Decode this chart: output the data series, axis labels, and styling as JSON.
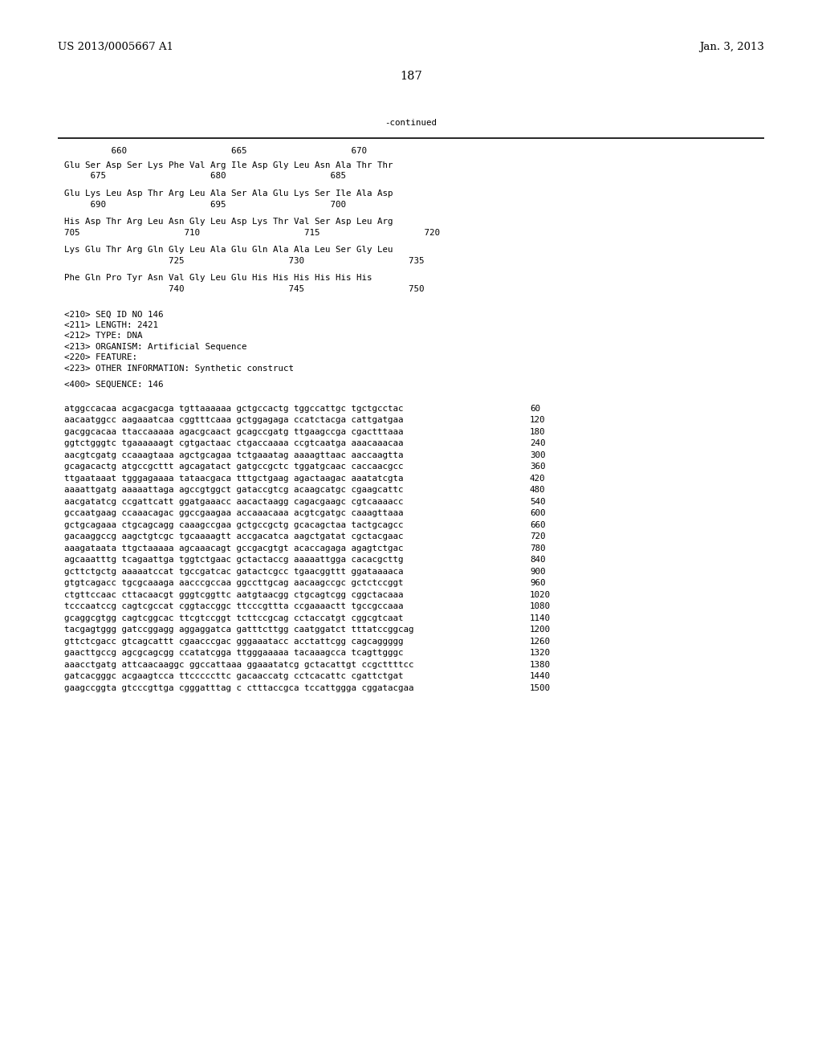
{
  "header_left": "US 2013/0005667 A1",
  "header_right": "Jan. 3, 2013",
  "page_number": "187",
  "continued_label": "-continued",
  "background_color": "#ffffff",
  "text_color": "#000000",
  "font_size_header": 9.5,
  "font_size_mono": 7.8,
  "numbering_line": "         660                    665                    670",
  "aa_sequence_lines": [
    "Glu Ser Asp Ser Lys Phe Val Arg Ile Asp Gly Leu Asn Ala Thr Thr",
    "     675                    680                    685",
    "",
    "Glu Lys Leu Asp Thr Arg Leu Ala Ser Ala Glu Lys Ser Ile Ala Asp",
    "     690                    695                    700",
    "",
    "His Asp Thr Arg Leu Asn Gly Leu Asp Lys Thr Val Ser Asp Leu Arg",
    "705                    710                    715                    720",
    "",
    "Lys Glu Thr Arg Gln Gly Leu Ala Glu Gln Ala Ala Leu Ser Gly Leu",
    "                    725                    730                    735",
    "",
    "Phe Gln Pro Tyr Asn Val Gly Leu Glu His His His His His His",
    "                    740                    745                    750"
  ],
  "metadata_lines": [
    "<210> SEQ ID NO 146",
    "<211> LENGTH: 2421",
    "<212> TYPE: DNA",
    "<213> ORGANISM: Artificial Sequence",
    "<220> FEATURE:",
    "<223> OTHER INFORMATION: Synthetic construct",
    "",
    "<400> SEQUENCE: 146"
  ],
  "dna_sequence_lines": [
    [
      "atggccacaa acgacgacga tgttaaaaaa gctgccactg tggccattgc tgctgcctac",
      "60"
    ],
    [
      "aacaatggcc aagaaatcaa cggtttcaaa gctggagaga ccatctacga cattgatgaa",
      "120"
    ],
    [
      "gacggcacaa ttaccaaaaa agacgcaact gcagccgatg ttgaagccga cgactttaaa",
      "180"
    ],
    [
      "ggtctgggtc tgaaaaaagt cgtgactaac ctgaccaaaa ccgtcaatga aaacaaacaa",
      "240"
    ],
    [
      "aacgtcgatg ccaaagtaaa agctgcagaa tctgaaatag aaaagttaac aaccaagtta",
      "300"
    ],
    [
      "gcagacactg atgccgcttt agcagatact gatgccgctc tggatgcaac caccaacgcc",
      "360"
    ],
    [
      "ttgaataaat tgggagaaaa tataacgaca tttgctgaag agactaagac aaatatcgta",
      "420"
    ],
    [
      "aaaattgatg aaaaattaga agccgtggct gataccgtcg acaagcatgc cgaagcattc",
      "480"
    ],
    [
      "aacgatatcg ccgattcatt ggatgaaacc aacactaagg cagacgaagc cgtcaaaacc",
      "540"
    ],
    [
      "gccaatgaag ccaaacagac ggccgaagaa accaaacaaa acgtcgatgc caaagttaaa",
      "600"
    ],
    [
      "gctgcagaaa ctgcagcagg caaagccgaa gctgccgctg gcacagctaa tactgcagcc",
      "660"
    ],
    [
      "gacaaggccg aagctgtcgc tgcaaaagtt accgacatca aagctgatat cgctacgaac",
      "720"
    ],
    [
      "aaagataata ttgctaaaaa agcaaacagt gccgacgtgt acaccagaga agagtctgac",
      "780"
    ],
    [
      "agcaaatttg tcagaattga tggtctgaac gctactaccg aaaaattgga cacacgcttg",
      "840"
    ],
    [
      "gcttctgctg aaaaatccat tgccgatcac gatactcgcc tgaacggttt ggataaaaca",
      "900"
    ],
    [
      "gtgtcagacc tgcgcaaaga aacccgccaa ggccttgcag aacaagccgc gctctccggt",
      "960"
    ],
    [
      "ctgttccaac cttacaacgt gggtcggttc aatgtaacgg ctgcagtcgg cggctacaaa",
      "1020"
    ],
    [
      "tcccaatccg cagtcgccat cggtaccggc ttcccgttta ccgaaaactt tgccgccaaa",
      "1080"
    ],
    [
      "gcaggcgtgg cagtcggcac ttcgtccggt tcttccgcag cctaccatgt cggcgtcaat",
      "1140"
    ],
    [
      "tacgagtggg gatccggagg aggaggatca gatttcttgg caatggatct tttatccggcag",
      "1200"
    ],
    [
      "gttctcgacc gtcagcattt cgaacccgac gggaaatacc acctattcgg cagcaggggg",
      "1260"
    ],
    [
      "gaacttgccg agcgcagcgg ccatatcgga ttgggaaaaa tacaaagcca tcagttgggc",
      "1320"
    ],
    [
      "aaacctgatg attcaacaaggc ggccattaaa ggaaatatcg gctacattgt ccgcttttcc",
      "1380"
    ],
    [
      "gatcacgggc acgaagtcca ttcccccttc gacaaccatg cctcacattc cgattctgat",
      "1440"
    ],
    [
      "gaagccggta gtcccgttga cgggatttag c ctttaccgca tccattggga cggatacgaa",
      "1500"
    ]
  ]
}
